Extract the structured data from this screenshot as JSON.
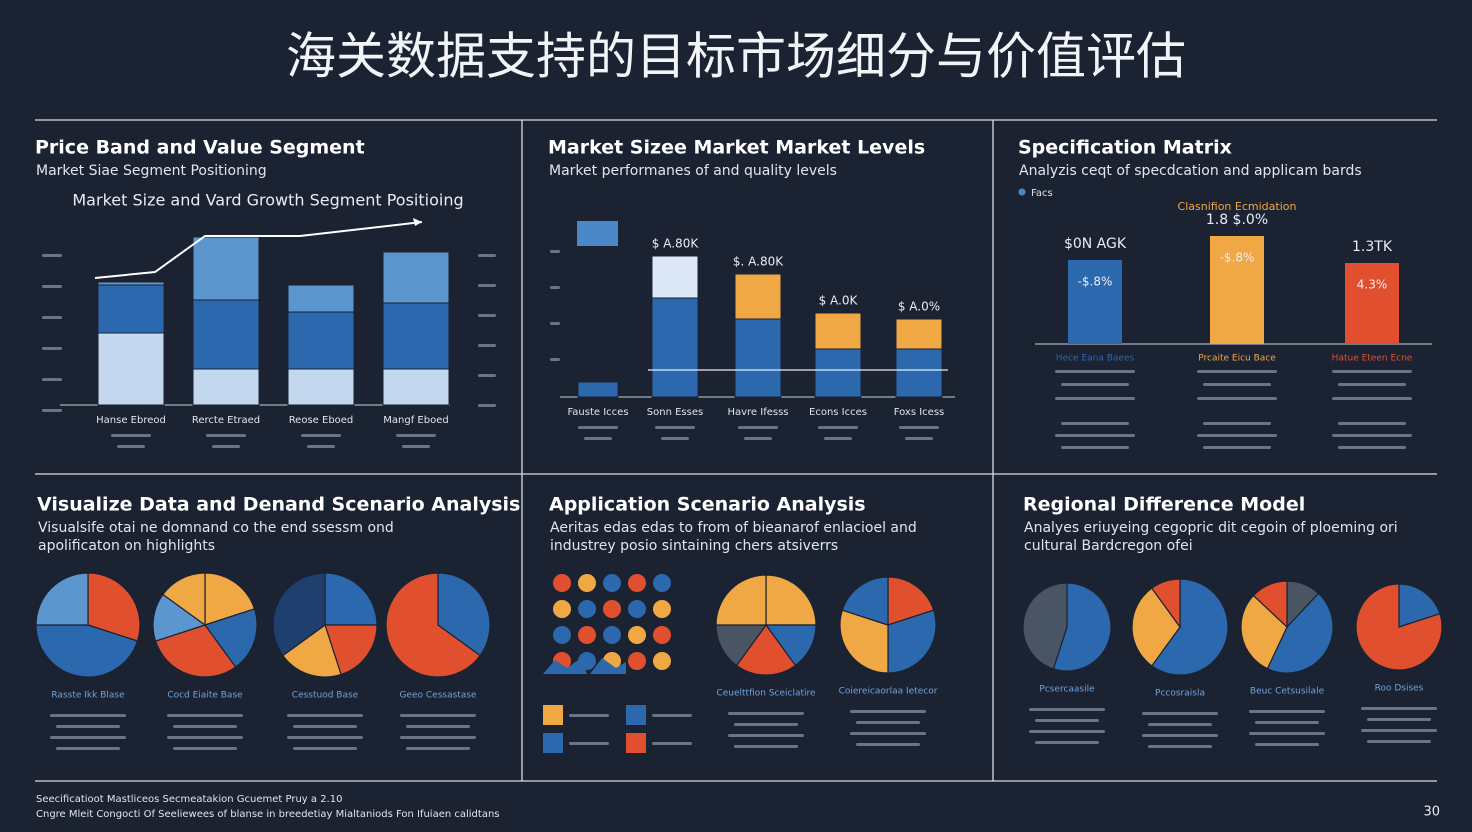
{
  "title": "海关数据支持的目标市场细分与价值评估",
  "panels": [
    {
      "title": "Price Band and Value Segment",
      "subtitle": [
        "Market Siae Segment Positioning"
      ],
      "chart": {
        "type": "stacked-bar",
        "title": "Market Size and Vard Growth Segment Positioing",
        "categories": [
          "Hanse Ebreod",
          "Rercte Etraed",
          "Reose Eboed",
          "Mangf Eboed"
        ],
        "ylim": [
          0,
          60
        ],
        "series": [
          {
            "color": "#c3d8ee",
            "values": [
              24,
              12,
              12,
              12
            ]
          },
          {
            "color": "#2b68ad",
            "values": [
              16,
              23,
              19,
              22
            ]
          },
          {
            "color": "#5b96cf",
            "values": [
              1,
              21,
              9,
              17
            ]
          }
        ]
      }
    },
    {
      "title": "Market Sizee Market Market Levels",
      "subtitle": [
        "Market performanes of and quality levels"
      ],
      "chart": {
        "type": "stacked-bar",
        "categories": [
          "Fauste Icces",
          "Sonn Esses",
          "Havre Ifesss",
          "Econs Icces",
          "Foxs Icess"
        ],
        "ylim": [
          0,
          55
        ],
        "series": [
          {
            "color": "#2b68ad",
            "values": [
              5,
              33,
              26,
              16,
              16
            ]
          },
          {
            "color": "#f0a845",
            "colors": [
              "#f0a845",
              "#dce8f5",
              "#f0a845",
              "#f0a845",
              "#f0a845"
            ],
            "values": [
              0,
              14,
              15,
              12,
              10
            ]
          }
        ],
        "annotations": [
          "$ A.80K",
          "$. A.80K",
          "$ A.0K",
          "$ A.0%"
        ]
      }
    },
    {
      "title": "Specification Matrix",
      "subtitle": [
        "Analyzis ceqt of specdcation and applicam bards"
      ],
      "chart": {
        "type": "bar",
        "legend": "Facs",
        "headline": "Clasnifion Ecmidation",
        "values": [
          28,
          36,
          27
        ],
        "colors": [
          "#2b68ad",
          "#f0a845",
          "#e0502f"
        ],
        "ylim": [
          0,
          40
        ],
        "annotations": [
          "$0N AGK",
          "1.8 $.0%",
          "1.3TK"
        ],
        "inner_labels": [
          "-$.8%",
          "-$.8%",
          "4.3%"
        ],
        "categories": [
          "Hece Eana Baees",
          "Prcaite Eicu Bace",
          "Hatue Eteen Ecne"
        ]
      }
    },
    {
      "title": "Visualize Data and Denand Scenario Analysis",
      "subtitle": [
        "Visualsife otai ne domnand co the end ssessm ond",
        "apolificaton on highlights"
      ],
      "chart": {
        "type": "pie",
        "pies": [
          {
            "values": [
              30,
              45,
              25
            ],
            "colors": [
              "#e0502f",
              "#2b68ad",
              "#5b96cf"
            ],
            "caption": "Rasste Ikk Blase"
          },
          {
            "values": [
              20,
              20,
              30,
              15,
              15
            ],
            "colors": [
              "#f0a845",
              "#2b68ad",
              "#e0502f",
              "#5b96cf",
              "#f0a845"
            ],
            "caption": "Cocd Eiaite Base"
          },
          {
            "values": [
              25,
              20,
              20,
              35
            ],
            "colors": [
              "#2b68ad",
              "#e0502f",
              "#f0a845",
              "#1f3f6e"
            ],
            "caption": "Cesstuod Base"
          },
          {
            "values": [
              35,
              65
            ],
            "colors": [
              "#2b68ad",
              "#e0502f"
            ],
            "caption": "Geeo Cessastase"
          }
        ]
      }
    },
    {
      "title": "Application Scenario Analysis",
      "subtitle": [
        "Aeritas edas edas to from of bieanarof enlacioel and",
        "industrey posio sintaining chers atsiverrs"
      ],
      "chart": {
        "type": "pie",
        "pies": [
          {
            "values": [
              25,
              15,
              20,
              15,
              25
            ],
            "colors": [
              "#f0a845",
              "#2b68ad",
              "#e0502f",
              "#4a5563",
              "#f0a845"
            ],
            "caption": "Ceuelttfion Sceiclatire"
          },
          {
            "values": [
              20,
              30,
              30,
              20
            ],
            "colors": [
              "#e0502f",
              "#2b68ad",
              "#f0a845",
              "#2b68ad"
            ],
            "caption": "Coiereicaorlaa Ietecor"
          }
        ]
      }
    },
    {
      "title": "Regional Difference Model",
      "subtitle": [
        "Analyes eriuyeing cegopric dit cegoin of ploeming ori",
        "cultural Bardcregon ofei"
      ],
      "chart": {
        "type": "pie",
        "pies": [
          {
            "values": [
              55,
              45
            ],
            "colors": [
              "#2b68ad",
              "#4a5563"
            ],
            "caption": "Pcsercaasile"
          },
          {
            "values": [
              60,
              30,
              10
            ],
            "colors": [
              "#2b68ad",
              "#f0a845",
              "#e0502f"
            ],
            "caption": "Pccosraisla"
          },
          {
            "values": [
              12,
              45,
              30,
              13
            ],
            "colors": [
              "#4a5563",
              "#2b68ad",
              "#f0a845",
              "#e0502f"
            ],
            "caption": "Beuc Cetsusilale"
          },
          {
            "values": [
              20,
              80
            ],
            "colors": [
              "#2b68ad",
              "#e0502f"
            ],
            "caption": "Roo Dsises"
          }
        ]
      }
    }
  ],
  "footer": [
    "Seecificatioot Mastliceos Secmeatakion Gcuemet Pruy a 2.10",
    "Cngre Mleit Congocti Of Seeliewees of blanse in breedetiay Mialtaniods Fon Ifuiaen calidtans"
  ],
  "page_number": 30
}
